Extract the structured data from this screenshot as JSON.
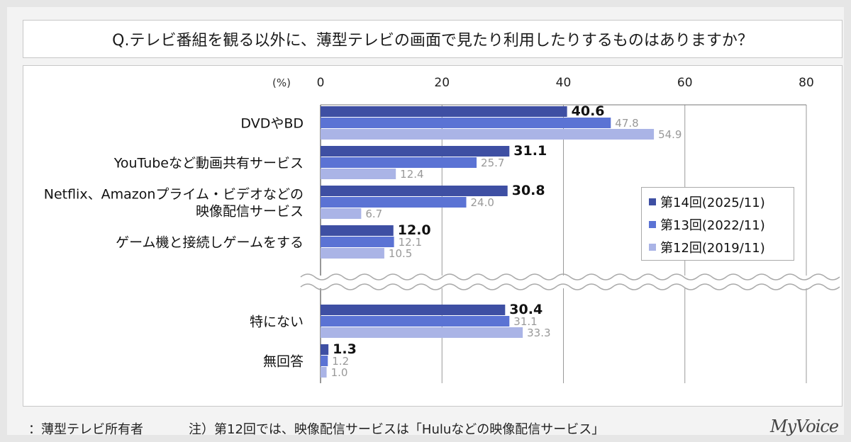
{
  "title": "Q.テレビ番組を観る以外に、薄型テレビの画面で見たり利用したりするものはありますか？",
  "footer": {
    "respondents": "：薄型テレビ所有者",
    "note": "注）第12回では、映像配信サービスは「Huluなどの映像配信サービス」",
    "brand": "MyVoice"
  },
  "colors": {
    "s14": "#3e4fa3",
    "s13": "#5b73d4",
    "s12": "#aab4e6",
    "grid": "#9a9a9a"
  },
  "chart_data": {
    "type": "bar",
    "orientation": "horizontal",
    "unit_label": "(%)",
    "xlim": [
      0,
      80
    ],
    "xticks": [
      "0",
      "20",
      "40",
      "60",
      "80"
    ],
    "categories": [
      [
        "DVDやBD"
      ],
      [
        "YouTubeなど動画共有サービス"
      ],
      [
        "Netflix、Amazonプライム・ビデオなどの",
        "映像配信サービス"
      ],
      [
        "ゲーム機と接続しゲームをする"
      ],
      [
        "特にない"
      ],
      [
        "無回答"
      ]
    ],
    "axis_break_after": 3,
    "legend_position": "right",
    "series": [
      {
        "name": "第14回(2025/11)",
        "values": [
          40.6,
          31.1,
          30.8,
          12.0,
          30.4,
          1.3
        ],
        "labels": [
          "40.6",
          "31.1",
          "30.8",
          "12.0",
          "30.4",
          "1.3"
        ]
      },
      {
        "name": "第13回(2022/11)",
        "values": [
          47.8,
          25.7,
          24.0,
          12.1,
          31.1,
          1.2
        ],
        "labels": [
          "47.8",
          "25.7",
          "24.0",
          "12.1",
          "31.1",
          "1.2"
        ]
      },
      {
        "name": "第12回(2019/11)",
        "values": [
          54.9,
          12.4,
          6.7,
          10.5,
          33.3,
          1.0
        ],
        "labels": [
          "54.9",
          "12.4",
          "6.7",
          "10.5",
          "33.3",
          "1.0"
        ]
      }
    ]
  }
}
